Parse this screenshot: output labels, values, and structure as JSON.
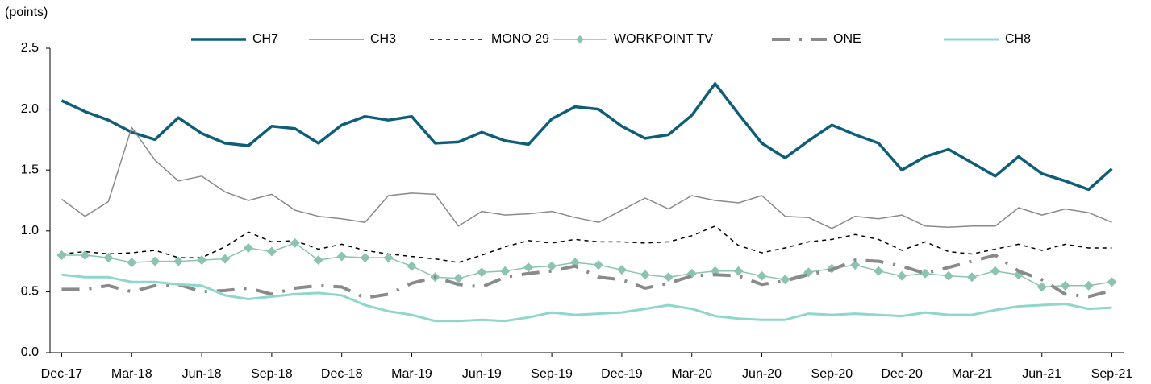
{
  "chart_data": {
    "type": "line",
    "ylabel": "(points)",
    "categories": [
      "Dec-17",
      null,
      null,
      "Mar-18",
      null,
      null,
      "Jun-18",
      null,
      null,
      "Sep-18",
      null,
      null,
      "Dec-18",
      null,
      null,
      "Mar-19",
      null,
      null,
      "Jun-19",
      null,
      null,
      "Sep-19",
      null,
      null,
      "Dec-19",
      null,
      null,
      "Mar-20",
      null,
      null,
      "Jun-20",
      null,
      null,
      "Sep-20",
      null,
      null,
      "Dec-20",
      null,
      null,
      "Mar-21",
      null,
      null,
      "Jun-21",
      null,
      null,
      "Sep-21"
    ],
    "ylim": [
      0,
      2.5
    ],
    "yticks": [
      {
        "value": 0,
        "label": "0.0"
      },
      0.5,
      {
        "value": 1,
        "label": "1.0"
      },
      1.5,
      {
        "value": 2,
        "label": "2.0"
      },
      2.5
    ],
    "series": [
      {
        "name": "CH7",
        "color": "#0f5e78",
        "width": 3.5,
        "values": [
          2.07,
          1.98,
          1.91,
          1.81,
          1.75,
          1.93,
          1.8,
          1.72,
          1.7,
          1.86,
          1.84,
          1.72,
          1.87,
          1.94,
          1.91,
          1.94,
          1.72,
          1.73,
          1.81,
          1.74,
          1.71,
          1.92,
          2.02,
          2.0,
          1.86,
          1.76,
          1.79,
          1.95,
          2.21,
          1.96,
          1.72,
          1.6,
          1.74,
          1.87,
          1.79,
          1.72,
          1.5,
          1.61,
          1.67,
          1.56,
          1.45,
          1.61,
          1.47,
          1.41,
          1.34,
          1.51
        ]
      },
      {
        "name": "CH3",
        "color": "#8a8a8a",
        "width": 1.5,
        "values": [
          1.26,
          1.12,
          1.24,
          1.85,
          1.58,
          1.41,
          1.45,
          1.32,
          1.25,
          1.3,
          1.17,
          1.12,
          1.1,
          1.07,
          1.29,
          1.31,
          1.3,
          1.04,
          1.16,
          1.13,
          1.14,
          1.16,
          1.11,
          1.07,
          1.17,
          1.27,
          1.18,
          1.29,
          1.25,
          1.23,
          1.29,
          1.12,
          1.11,
          1.02,
          1.12,
          1.1,
          1.13,
          1.04,
          1.03,
          1.04,
          1.04,
          1.19,
          1.13,
          1.18,
          1.15,
          1.07
        ]
      },
      {
        "name": "MONO 29",
        "color": "#000000",
        "width": 1.5,
        "dash": "5,5",
        "values": [
          0.81,
          0.83,
          0.81,
          0.82,
          0.84,
          0.78,
          0.78,
          0.87,
          0.99,
          0.91,
          0.92,
          0.85,
          0.89,
          0.84,
          0.81,
          0.79,
          0.77,
          0.74,
          0.8,
          0.87,
          0.92,
          0.9,
          0.93,
          0.91,
          0.91,
          0.9,
          0.91,
          0.96,
          1.04,
          0.88,
          0.82,
          0.86,
          0.91,
          0.93,
          0.97,
          0.93,
          0.84,
          0.91,
          0.83,
          0.81,
          0.85,
          0.89,
          0.84,
          0.89,
          0.86,
          0.86
        ]
      },
      {
        "name": "WORKPOINT TV",
        "color": "#8cc4b0",
        "width": 1.5,
        "marker": "diamond",
        "values": [
          0.8,
          0.8,
          0.78,
          0.74,
          0.75,
          0.75,
          0.76,
          0.77,
          0.86,
          0.83,
          0.9,
          0.76,
          0.79,
          0.78,
          0.78,
          0.71,
          0.62,
          0.61,
          0.66,
          0.67,
          0.7,
          0.71,
          0.74,
          0.72,
          0.68,
          0.64,
          0.62,
          0.65,
          0.67,
          0.67,
          0.63,
          0.6,
          0.66,
          0.69,
          0.72,
          0.67,
          0.63,
          0.65,
          0.63,
          0.62,
          0.67,
          0.64,
          0.54,
          0.55,
          0.55,
          0.58
        ]
      },
      {
        "name": "ONE",
        "color": "#8a8a8a",
        "width": 4,
        "dash": "22,12,3,12",
        "values": [
          0.52,
          0.52,
          0.55,
          0.5,
          0.55,
          0.56,
          0.5,
          0.51,
          0.53,
          0.48,
          0.53,
          0.55,
          0.54,
          0.45,
          0.48,
          0.57,
          0.62,
          0.56,
          0.54,
          0.62,
          0.65,
          0.67,
          0.71,
          0.62,
          0.6,
          0.53,
          0.57,
          0.63,
          0.64,
          0.63,
          0.56,
          0.59,
          0.64,
          0.68,
          0.76,
          0.75,
          0.71,
          0.65,
          0.7,
          0.75,
          0.8,
          0.67,
          0.6,
          0.48,
          0.46,
          0.51
        ]
      },
      {
        "name": "CH8",
        "color": "#8fd6cc",
        "width": 3,
        "values": [
          0.64,
          0.62,
          0.62,
          0.58,
          0.58,
          0.56,
          0.55,
          0.47,
          0.44,
          0.46,
          0.48,
          0.49,
          0.47,
          0.39,
          0.34,
          0.31,
          0.26,
          0.26,
          0.27,
          0.26,
          0.29,
          0.33,
          0.31,
          0.32,
          0.33,
          0.36,
          0.39,
          0.36,
          0.3,
          0.28,
          0.27,
          0.27,
          0.32,
          0.31,
          0.32,
          0.31,
          0.3,
          0.33,
          0.31,
          0.31,
          0.35,
          0.38,
          0.39,
          0.4,
          0.36,
          0.37
        ]
      }
    ]
  }
}
